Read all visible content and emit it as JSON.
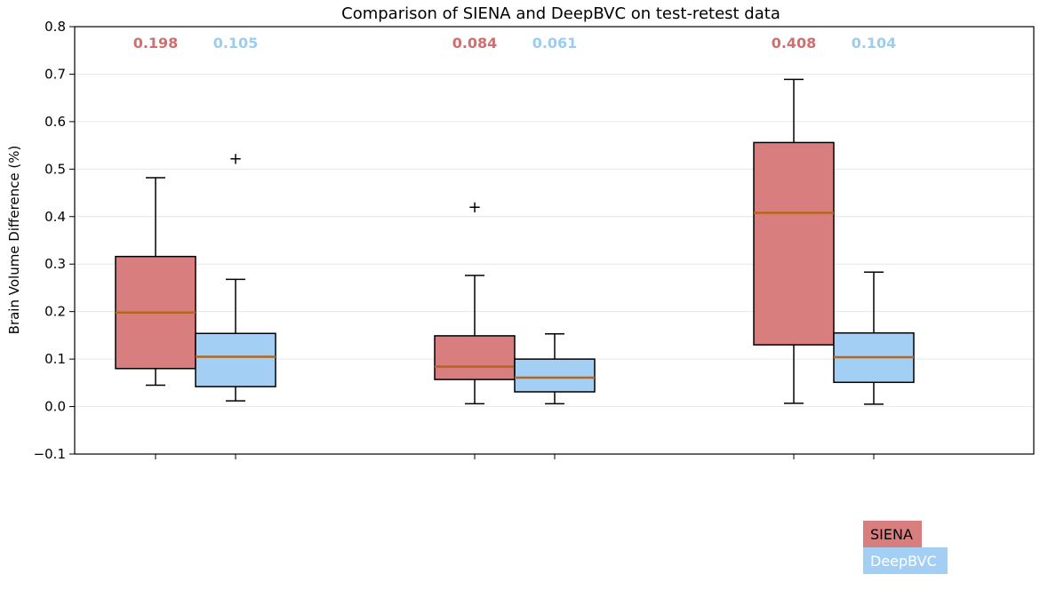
{
  "chart_data": {
    "type": "boxplot",
    "title": "Comparison of SIENA and DeepBVC on test-retest data",
    "xlabel": "",
    "ylabel": "Brain Volume Difference (%)",
    "ylim": [
      -0.1,
      0.8
    ],
    "yticks": [
      -0.1,
      0.0,
      0.1,
      0.2,
      0.3,
      0.4,
      0.5,
      0.6,
      0.7,
      0.8
    ],
    "ytick_labels": [
      "−0.1",
      "0.0",
      "0.1",
      "0.2",
      "0.3",
      "0.4",
      "0.5",
      "0.6",
      "0.7",
      "0.8"
    ],
    "grid": "horizontal",
    "legend_position": "bottom-right",
    "group_count": 3,
    "series": [
      {
        "name": "SIENA",
        "color": "#d97e7e",
        "label_color": "#d16e6e",
        "boxes": [
          {
            "q1": 0.08,
            "median": 0.198,
            "q3": 0.316,
            "whisker_low": 0.045,
            "whisker_high": 0.482,
            "outliers": []
          },
          {
            "q1": 0.057,
            "median": 0.084,
            "q3": 0.149,
            "whisker_low": 0.006,
            "whisker_high": 0.276,
            "outliers": [
              0.42
            ]
          },
          {
            "q1": 0.13,
            "median": 0.408,
            "q3": 0.556,
            "whisker_low": 0.007,
            "whisker_high": 0.689,
            "outliers": []
          }
        ],
        "median_labels": [
          "0.198",
          "0.084",
          "0.408"
        ]
      },
      {
        "name": "DeepBVC",
        "color": "#a3cff5",
        "label_color": "#99cdf2",
        "boxes": [
          {
            "q1": 0.042,
            "median": 0.105,
            "q3": 0.154,
            "whisker_low": 0.012,
            "whisker_high": 0.268,
            "outliers": [
              0.522
            ]
          },
          {
            "q1": 0.031,
            "median": 0.061,
            "q3": 0.1,
            "whisker_low": 0.006,
            "whisker_high": 0.153,
            "outliers": []
          },
          {
            "q1": 0.051,
            "median": 0.104,
            "q3": 0.155,
            "whisker_low": 0.005,
            "whisker_high": 0.283,
            "outliers": []
          }
        ],
        "median_labels": [
          "0.105",
          "0.061",
          "0.104"
        ]
      }
    ],
    "median_line_color": "#b5651d",
    "outlier_marker": "+"
  }
}
